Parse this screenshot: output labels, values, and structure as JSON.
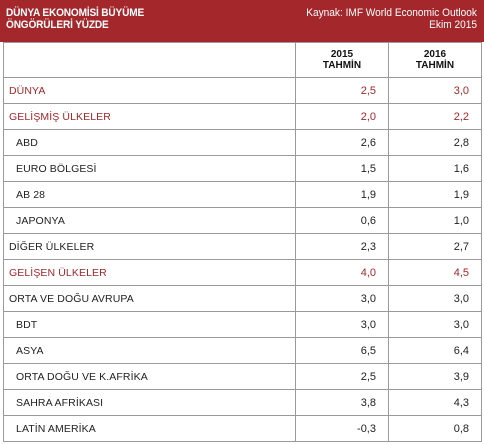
{
  "header": {
    "title_line1": "DÜNYA EKONOMİSİ BÜYÜME",
    "title_line2": "ÖNGÖRÜLERİ YÜZDE",
    "source_line1": "Kaynak: IMF World Economic Outlook",
    "source_line2": "Ekim 2015"
  },
  "columns": [
    {
      "year": "2015",
      "note": "TAHMİN"
    },
    {
      "year": "2016",
      "note": "TAHMİN"
    }
  ],
  "rows": [
    {
      "label": "DÜNYA",
      "v2015": "2,5",
      "v2016": "3,0",
      "highlight": true,
      "indent": false
    },
    {
      "label": "GELİŞMİŞ ÜLKELER",
      "v2015": "2,0",
      "v2016": "2,2",
      "highlight": true,
      "indent": false
    },
    {
      "label": "ABD",
      "v2015": "2,6",
      "v2016": "2,8",
      "highlight": false,
      "indent": true
    },
    {
      "label": "EURO BÖLGESİ",
      "v2015": "1,5",
      "v2016": "1,6",
      "highlight": false,
      "indent": true
    },
    {
      "label": "AB 28",
      "v2015": "1,9",
      "v2016": "1,9",
      "highlight": false,
      "indent": true
    },
    {
      "label": "JAPONYA",
      "v2015": "0,6",
      "v2016": "1,0",
      "highlight": false,
      "indent": true
    },
    {
      "label": "DİĞER ÜLKELER",
      "v2015": "2,3",
      "v2016": "2,7",
      "highlight": false,
      "indent": false
    },
    {
      "label": "GELİŞEN ÜLKELER",
      "v2015": "4,0",
      "v2016": "4,5",
      "highlight": true,
      "indent": false
    },
    {
      "label": "ORTA VE DOĞU AVRUPA",
      "v2015": "3,0",
      "v2016": "3,0",
      "highlight": false,
      "indent": false
    },
    {
      "label": "BDT",
      "v2015": "3,0",
      "v2016": "3,0",
      "highlight": false,
      "indent": true
    },
    {
      "label": "ASYA",
      "v2015": "6,5",
      "v2016": "6,4",
      "highlight": false,
      "indent": true
    },
    {
      "label": "ORTA DOĞU VE K.AFRİKA",
      "v2015": "2,5",
      "v2016": "3,9",
      "highlight": false,
      "indent": true
    },
    {
      "label": "SAHRA AFRİKASI",
      "v2015": "3,8",
      "v2016": "4,3",
      "highlight": false,
      "indent": true
    },
    {
      "label": "LATİN AMERİKA",
      "v2015": "-0,3",
      "v2016": "0,8",
      "highlight": false,
      "indent": true
    }
  ],
  "colors": {
    "accent": "#a3272b",
    "border": "#9a9a9a"
  }
}
